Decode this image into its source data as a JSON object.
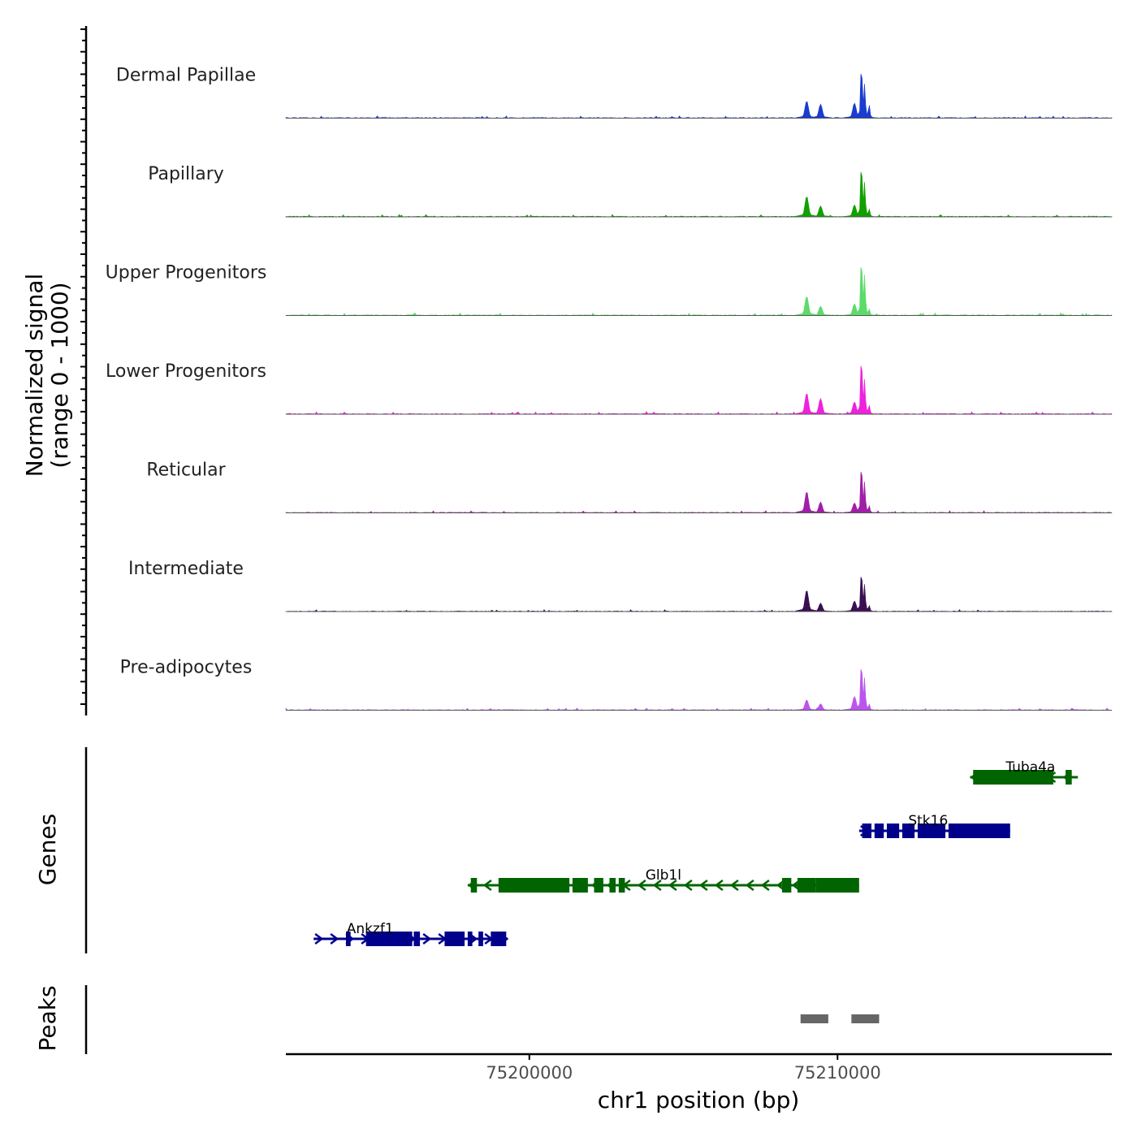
{
  "chart_data": {
    "type": "area",
    "title": "",
    "ylabel_line1": "Normalized signal",
    "ylabel_line2": "(range 0 - 1000)",
    "genes_label": "Genes",
    "peaks_label": "Peaks",
    "xlabel": "chr1 position (bp)",
    "x_range": [
      75192100,
      75218900
    ],
    "x_ticks": [
      {
        "value": 75200000,
        "label": "75200000"
      },
      {
        "value": 75210000,
        "label": "75210000"
      }
    ],
    "y_range": [
      0,
      1000
    ],
    "tracks": [
      {
        "name": "Dermal Papillae",
        "color": "#1a3ccf",
        "scale": 0.92,
        "peaks": [
          [
            75208950,
            75209050,
            320
          ],
          [
            75209400,
            75209500,
            260
          ],
          [
            75210500,
            75210600,
            280
          ],
          [
            75210750,
            75210800,
            1000
          ],
          [
            75210850,
            75210900,
            640
          ],
          [
            75211000,
            75211050,
            250
          ]
        ]
      },
      {
        "name": "Papillary",
        "color": "#11a000",
        "scale": 0.93,
        "peaks": [
          [
            75208950,
            75209050,
            380
          ],
          [
            75209400,
            75209500,
            200
          ],
          [
            75210500,
            75210600,
            220
          ],
          [
            75210750,
            75210800,
            1000
          ],
          [
            75210850,
            75210900,
            640
          ],
          [
            75211000,
            75211050,
            150
          ]
        ]
      },
      {
        "name": "Upper Progenitors",
        "color": "#5cdb6a",
        "scale": 1.0,
        "peaks": [
          [
            75208950,
            75209050,
            330
          ],
          [
            75209400,
            75209500,
            160
          ],
          [
            75210500,
            75210600,
            200
          ],
          [
            75210750,
            75210800,
            1000
          ],
          [
            75210850,
            75210900,
            700
          ],
          [
            75211000,
            75211050,
            120
          ]
        ]
      },
      {
        "name": "Lower Progenitors",
        "color": "#ee22dd",
        "scale": 1.0,
        "peaks": [
          [
            75208950,
            75209050,
            360
          ],
          [
            75209400,
            75209500,
            270
          ],
          [
            75210500,
            75210600,
            210
          ],
          [
            75210750,
            75210800,
            1000
          ],
          [
            75210850,
            75210900,
            600
          ],
          [
            75211000,
            75211050,
            160
          ]
        ]
      },
      {
        "name": "Reticular",
        "color": "#a01fa8",
        "scale": 0.85,
        "peaks": [
          [
            75208950,
            75209050,
            430
          ],
          [
            75209400,
            75209500,
            220
          ],
          [
            75210500,
            75210600,
            200
          ],
          [
            75210750,
            75210800,
            1000
          ],
          [
            75210850,
            75210900,
            630
          ],
          [
            75211000,
            75211050,
            150
          ]
        ]
      },
      {
        "name": "Intermediate",
        "color": "#3a0f52",
        "scale": 0.72,
        "peaks": [
          [
            75208950,
            75209050,
            510
          ],
          [
            75209400,
            75209500,
            200
          ],
          [
            75210500,
            75210600,
            250
          ],
          [
            75210750,
            75210800,
            1000
          ],
          [
            75210850,
            75210900,
            650
          ],
          [
            75211000,
            75211050,
            150
          ]
        ]
      },
      {
        "name": "Pre-adipocytes",
        "color": "#bb55ee",
        "scale": 0.85,
        "peaks": [
          [
            75208950,
            75209050,
            210
          ],
          [
            75209400,
            75209500,
            130
          ],
          [
            75210500,
            75210600,
            280
          ],
          [
            75210750,
            75210800,
            1000
          ],
          [
            75210850,
            75210900,
            660
          ],
          [
            75211000,
            75211050,
            130
          ]
        ]
      }
    ],
    "genes": [
      {
        "name": "Tuba4a",
        "strand": "-",
        "color": "#006400",
        "start": 75214300,
        "end": 75217800,
        "exons": [
          [
            75214400,
            75217000
          ],
          [
            75217400,
            75217600
          ]
        ]
      },
      {
        "name": "Stk16",
        "strand": "+",
        "color": "#00008b",
        "start": 75210700,
        "end": 75215600,
        "exons": [
          [
            75210800,
            75211100
          ],
          [
            75211200,
            75211500
          ],
          [
            75211600,
            75212000
          ],
          [
            75212100,
            75212500
          ],
          [
            75212600,
            75213500
          ],
          [
            75213600,
            75215600
          ]
        ]
      },
      {
        "name": "Glb1l",
        "strand": "-",
        "color": "#006400",
        "start": 75198000,
        "end": 75210700,
        "exons": [
          [
            75198100,
            75198300
          ],
          [
            75199000,
            75201300
          ],
          [
            75201400,
            75201900
          ],
          [
            75202100,
            75202400
          ],
          [
            75202600,
            75202800
          ],
          [
            75202900,
            75203100
          ],
          [
            75208200,
            75208500
          ],
          [
            75208700,
            75209300
          ],
          [
            75209300,
            75210700
          ]
        ]
      },
      {
        "name": "Ankzf1",
        "strand": "+",
        "color": "#00008b",
        "start": 75193000,
        "end": 75199300,
        "exons": [
          [
            75194050,
            75194200
          ],
          [
            75194700,
            75196200
          ],
          [
            75196250,
            75196450
          ],
          [
            75197250,
            75197900
          ],
          [
            75198000,
            75198150
          ],
          [
            75198350,
            75198500
          ],
          [
            75198750,
            75199250
          ]
        ]
      }
    ],
    "peak_regions": [
      [
        75208800,
        75209700
      ],
      [
        75210450,
        75211350
      ]
    ],
    "peak_color": "#666666"
  }
}
